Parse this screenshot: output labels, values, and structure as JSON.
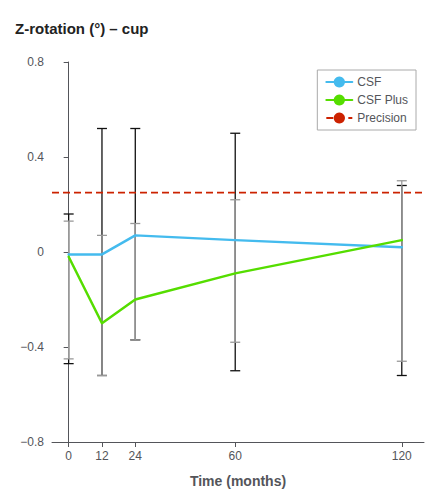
{
  "chart_data": {
    "type": "line",
    "title": "Z-rotation (°) – cup",
    "xlabel": "Time (months)",
    "x": [
      0,
      12,
      24,
      60,
      120
    ],
    "xlim": [
      -6,
      128
    ],
    "xticks": [
      0,
      12,
      24,
      60,
      120
    ],
    "ylim": [
      -0.8,
      0.8
    ],
    "yticks": [
      {
        "value": -0.8,
        "label": "−0.8"
      },
      {
        "value": -0.4,
        "label": "−0.4"
      },
      0,
      0.4,
      0.8
    ],
    "grid": false,
    "legend": "upper right",
    "series": [
      {
        "name": "CSF",
        "color": "#44bbee",
        "values": [
          -0.01,
          -0.01,
          0.07,
          0.05,
          0.02
        ],
        "ci_upper": [
          0.16,
          0.52,
          0.52,
          0.5,
          0.28
        ],
        "ci_lower": [
          -0.47,
          -0.52,
          -0.37,
          -0.5,
          -0.52
        ]
      },
      {
        "name": "CSF Plus",
        "color": "#55dd00",
        "values": [
          -0.02,
          -0.3,
          -0.2,
          -0.09,
          0.05
        ],
        "ci_upper": [
          0.13,
          0.07,
          0.12,
          0.22,
          0.3
        ],
        "ci_lower": [
          -0.45,
          -0.52,
          -0.37,
          -0.38,
          -0.46
        ]
      },
      {
        "name": "Precision",
        "type": "hline",
        "color": "#cc2200",
        "line_style": "dashed",
        "y": 0.25
      }
    ]
  }
}
